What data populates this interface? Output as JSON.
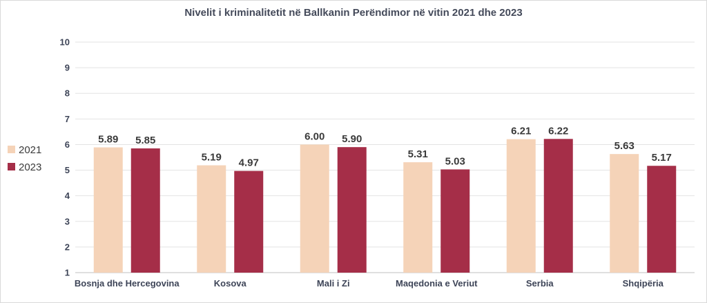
{
  "chart_data": {
    "type": "bar",
    "title": "Nivelit i kriminalitetit në Ballkanin Perëndimor në vitin 2021 dhe 2023",
    "xlabel": "",
    "ylabel": "",
    "categories": [
      "Bosnja dhe Hercegovina",
      "Kosova",
      "Mali i Zi",
      "Maqedonia e Veriut",
      "Serbia",
      "Shqipëria"
    ],
    "series": [
      {
        "name": "2021",
        "color": "#f5d3b8",
        "values": [
          5.89,
          5.19,
          6.0,
          5.31,
          6.21,
          5.63
        ],
        "labels": [
          "5.89",
          "5.19",
          "6.00",
          "5.31",
          "6.21",
          "5.63"
        ]
      },
      {
        "name": "2023",
        "color": "#a52e48",
        "values": [
          5.85,
          4.97,
          5.9,
          5.03,
          6.22,
          5.17
        ],
        "labels": [
          "5.85",
          "4.97",
          "5.90",
          "5.03",
          "6.22",
          "5.17"
        ]
      }
    ],
    "ylim": [
      1,
      10
    ],
    "yticks": [
      "1",
      "2",
      "3",
      "4",
      "5",
      "6",
      "7",
      "8",
      "9",
      "10"
    ],
    "grid": true,
    "legend_position": "left"
  }
}
